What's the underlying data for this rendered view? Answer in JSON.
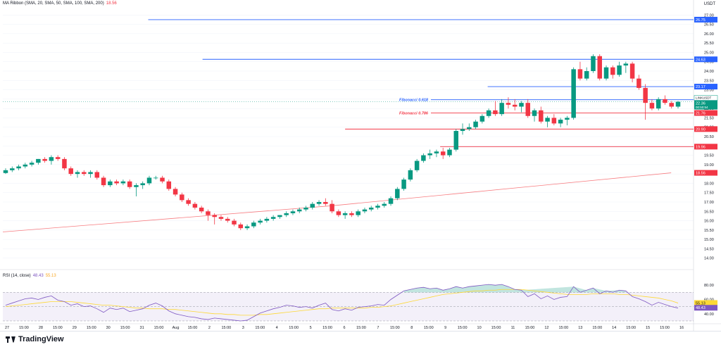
{
  "header": {
    "ma_title": "MA Ribbon (SMA, 20, SMA, 50, SMA, 100, SMA, 200)",
    "ma_value": "18.56",
    "currency": "USDT"
  },
  "rsi_panel": {
    "title": "RSI (14, close)",
    "rsi_value": "48.43",
    "rsi_ma_value": "55.13"
  },
  "footer": {
    "brand": "TradingView"
  },
  "colors": {
    "up": "#089981",
    "down": "#f23645",
    "blue": "#2962ff",
    "red": "#f23645",
    "ma": "#f77c80",
    "rsi": "#7e57c2",
    "rsi_ma": "#fdd835",
    "grid": "#f0f3fa"
  },
  "chart_data": {
    "type": "candlestick",
    "ylim": [
      13.5,
      27.5
    ],
    "y_ticks": [
      "27.00",
      "26.50",
      "26.00",
      "25.50",
      "25.00",
      "24.50",
      "24.00",
      "23.50",
      "23.00",
      "22.50",
      "22.00",
      "21.50",
      "21.00",
      "20.50",
      "20.00",
      "19.50",
      "19.00",
      "18.50",
      "18.00",
      "17.50",
      "17.00",
      "16.50",
      "16.00",
      "15.50",
      "15.00",
      "14.50",
      "14.00"
    ],
    "x_labels": [
      "27",
      "15:00",
      "28",
      "15:00",
      "29",
      "15:00",
      "30",
      "15:00",
      "31",
      "15:00",
      "Aug",
      "15:00",
      "2",
      "15:00",
      "3",
      "15:00",
      "4",
      "15:00",
      "5",
      "15:00",
      "6",
      "15:00",
      "7",
      "15:00",
      "8",
      "15:00",
      "9",
      "15:00",
      "10",
      "15:00",
      "11",
      "15:00",
      "12",
      "15:00",
      "13",
      "15:00",
      "14",
      "15:00",
      "15",
      "15:00",
      "16"
    ],
    "candles": [
      [
        18.55,
        18.8,
        18.5,
        18.7
      ],
      [
        18.7,
        18.9,
        18.6,
        18.8
      ],
      [
        18.8,
        19.0,
        18.7,
        18.9
      ],
      [
        18.9,
        19.1,
        18.8,
        19.0
      ],
      [
        19.0,
        19.2,
        18.9,
        19.1
      ],
      [
        19.1,
        19.3,
        19.0,
        19.3
      ],
      [
        19.3,
        19.4,
        19.1,
        19.2
      ],
      [
        19.2,
        19.5,
        19.0,
        19.4
      ],
      [
        19.4,
        19.5,
        19.2,
        19.3
      ],
      [
        19.3,
        19.4,
        18.7,
        18.8
      ],
      [
        18.8,
        18.9,
        18.4,
        18.5
      ],
      [
        18.5,
        18.7,
        18.3,
        18.6
      ],
      [
        18.6,
        18.7,
        18.4,
        18.5
      ],
      [
        18.5,
        18.7,
        18.3,
        18.6
      ],
      [
        18.6,
        18.7,
        18.2,
        18.3
      ],
      [
        18.3,
        18.4,
        17.8,
        17.9
      ],
      [
        17.9,
        18.2,
        17.8,
        18.1
      ],
      [
        18.1,
        18.2,
        17.9,
        18.0
      ],
      [
        18.0,
        18.2,
        17.9,
        18.1
      ],
      [
        18.1,
        18.2,
        17.7,
        17.8
      ],
      [
        17.8,
        18.0,
        17.3,
        17.9
      ],
      [
        17.9,
        18.1,
        17.7,
        18.0
      ],
      [
        18.0,
        18.4,
        17.9,
        18.3
      ],
      [
        18.3,
        18.4,
        18.2,
        18.3
      ],
      [
        18.3,
        18.4,
        18.0,
        18.1
      ],
      [
        18.1,
        18.2,
        17.6,
        17.7
      ],
      [
        17.7,
        17.8,
        17.3,
        17.4
      ],
      [
        17.4,
        17.5,
        17.0,
        17.1
      ],
      [
        17.1,
        17.2,
        16.8,
        16.9
      ],
      [
        16.9,
        17.0,
        16.6,
        16.7
      ],
      [
        16.7,
        16.8,
        16.4,
        16.5
      ],
      [
        16.5,
        16.6,
        16.0,
        16.3
      ],
      [
        16.3,
        16.4,
        15.8,
        16.2
      ],
      [
        16.2,
        16.3,
        16.0,
        16.1
      ],
      [
        16.1,
        16.2,
        15.9,
        16.0
      ],
      [
        16.0,
        16.1,
        15.7,
        15.8
      ],
      [
        15.8,
        15.9,
        15.5,
        15.6
      ],
      [
        15.6,
        15.8,
        15.5,
        15.7
      ],
      [
        15.7,
        16.0,
        15.6,
        15.9
      ],
      [
        15.9,
        16.1,
        15.8,
        16.0
      ],
      [
        16.0,
        16.2,
        15.9,
        16.1
      ],
      [
        16.1,
        16.3,
        16.0,
        16.2
      ],
      [
        16.2,
        16.3,
        16.1,
        16.3
      ],
      [
        16.3,
        16.5,
        16.2,
        16.4
      ],
      [
        16.4,
        16.6,
        16.3,
        16.5
      ],
      [
        16.5,
        16.7,
        16.4,
        16.6
      ],
      [
        16.6,
        16.8,
        16.5,
        16.7
      ],
      [
        16.7,
        17.0,
        16.6,
        16.9
      ],
      [
        16.9,
        17.1,
        16.8,
        17.0
      ],
      [
        17.0,
        17.2,
        16.8,
        16.9
      ],
      [
        16.9,
        17.1,
        16.4,
        16.5
      ],
      [
        16.5,
        16.6,
        16.2,
        16.3
      ],
      [
        16.3,
        16.5,
        16.1,
        16.4
      ],
      [
        16.4,
        16.5,
        16.2,
        16.3
      ],
      [
        16.3,
        16.6,
        16.2,
        16.5
      ],
      [
        16.5,
        16.7,
        16.4,
        16.6
      ],
      [
        16.6,
        16.8,
        16.5,
        16.7
      ],
      [
        16.7,
        16.9,
        16.6,
        16.8
      ],
      [
        16.8,
        17.0,
        16.7,
        16.9
      ],
      [
        16.9,
        17.3,
        16.8,
        17.2
      ],
      [
        17.2,
        17.8,
        17.1,
        17.7
      ],
      [
        17.7,
        18.3,
        17.6,
        18.2
      ],
      [
        18.2,
        18.8,
        18.1,
        18.7
      ],
      [
        18.7,
        19.3,
        18.6,
        19.2
      ],
      [
        19.2,
        19.6,
        19.1,
        19.5
      ],
      [
        19.5,
        19.8,
        19.3,
        19.6
      ],
      [
        19.6,
        19.8,
        19.4,
        19.7
      ],
      [
        19.7,
        19.9,
        19.3,
        19.5
      ],
      [
        19.5,
        19.9,
        19.4,
        19.8
      ],
      [
        19.8,
        20.9,
        19.7,
        20.8
      ],
      [
        20.8,
        21.2,
        20.6,
        20.9
      ],
      [
        20.9,
        21.2,
        20.8,
        21.0
      ],
      [
        21.0,
        21.4,
        20.9,
        21.3
      ],
      [
        21.3,
        21.7,
        21.2,
        21.6
      ],
      [
        21.6,
        22.0,
        21.5,
        21.9
      ],
      [
        21.9,
        22.4,
        21.6,
        21.7
      ],
      [
        21.7,
        22.5,
        21.6,
        22.3
      ],
      [
        22.3,
        22.6,
        22.0,
        22.2
      ],
      [
        22.2,
        22.5,
        21.9,
        22.1
      ],
      [
        22.1,
        22.4,
        21.8,
        22.3
      ],
      [
        22.3,
        22.5,
        21.5,
        21.6
      ],
      [
        21.6,
        22.0,
        21.3,
        21.9
      ],
      [
        21.9,
        22.1,
        21.2,
        21.3
      ],
      [
        21.3,
        21.6,
        21.0,
        21.5
      ],
      [
        21.5,
        21.7,
        21.1,
        21.2
      ],
      [
        21.2,
        21.5,
        21.0,
        21.4
      ],
      [
        21.4,
        21.6,
        21.1,
        21.5
      ],
      [
        21.5,
        24.2,
        21.4,
        24.1
      ],
      [
        24.1,
        24.5,
        23.5,
        23.6
      ],
      [
        23.6,
        24.2,
        23.5,
        24.0
      ],
      [
        24.0,
        24.9,
        23.9,
        24.8
      ],
      [
        24.8,
        24.9,
        23.5,
        23.6
      ],
      [
        23.6,
        24.3,
        23.5,
        24.2
      ],
      [
        24.2,
        24.3,
        23.6,
        23.8
      ],
      [
        23.8,
        24.5,
        23.7,
        24.3
      ],
      [
        24.3,
        24.5,
        23.9,
        24.4
      ],
      [
        24.4,
        24.5,
        23.4,
        23.6
      ],
      [
        23.6,
        23.8,
        23.0,
        23.1
      ],
      [
        23.1,
        23.3,
        21.4,
        22.3
      ],
      [
        22.3,
        22.5,
        21.9,
        22.0
      ],
      [
        22.0,
        22.6,
        21.9,
        22.5
      ],
      [
        22.5,
        22.7,
        22.2,
        22.3
      ],
      [
        22.3,
        22.4,
        22.0,
        22.1
      ],
      [
        22.1,
        22.4,
        22.0,
        22.36
      ]
    ],
    "ma200": [
      [
        0,
        15.4
      ],
      [
        50,
        16.8
      ],
      [
        100,
        18.8
      ]
    ],
    "levels": [
      {
        "value": 26.75,
        "label": "26.75",
        "color": "blue",
        "x_from": 21
      },
      {
        "value": 24.63,
        "label": "24.63",
        "color": "blue",
        "x_from": 29
      },
      {
        "value": 23.17,
        "label": "23.17",
        "color": "blue",
        "x_from": 71
      },
      {
        "value": 22.47,
        "label": "22.47",
        "color": "blue",
        "x_from": 0,
        "name": "Fibonacci 0.618"
      },
      {
        "value": 21.76,
        "label": "21.76",
        "color": "red",
        "x_from": 0,
        "name": "Fibonacci 0.786"
      },
      {
        "value": 20.9,
        "label": "20.90",
        "color": "red",
        "x_from": 50
      },
      {
        "value": 19.96,
        "label": "19.96",
        "color": "red",
        "x_from": 64
      }
    ],
    "current_price": {
      "value": 22.36,
      "label": "22.36",
      "symbol": "LINKUSDT",
      "countdown": "00:50:54"
    },
    "ma_value_label": {
      "value": 18.56,
      "label": "18.56"
    },
    "rsi": {
      "ylim": [
        28,
        90
      ],
      "y_ticks": [
        "80.00",
        "60.00",
        "40.00"
      ],
      "overbought": 70,
      "oversold": 30,
      "mid": 50,
      "rsi_label": "48.43",
      "rsi_ma_label": "55.13",
      "values": [
        52,
        55,
        58,
        61,
        62,
        60,
        63,
        65,
        59,
        57,
        52,
        54,
        50,
        51,
        47,
        42,
        48,
        46,
        48,
        43,
        45,
        47,
        52,
        55,
        51,
        44,
        40,
        38,
        36,
        35,
        33,
        32,
        34,
        33,
        32,
        31,
        30,
        31,
        36,
        41,
        44,
        47,
        49,
        52,
        51,
        49,
        50,
        48,
        52,
        55,
        46,
        44,
        47,
        45,
        49,
        50,
        51,
        53,
        52,
        60,
        66,
        72,
        74,
        76,
        77,
        75,
        76,
        73,
        75,
        78,
        76,
        78,
        79,
        80,
        81,
        80,
        81,
        78,
        74,
        73,
        64,
        68,
        61,
        65,
        60,
        63,
        64,
        78,
        70,
        73,
        76,
        68,
        72,
        70,
        73,
        72,
        64,
        61,
        57,
        52,
        56,
        53,
        50,
        48
      ],
      "ma_values": [
        50,
        51,
        52,
        53,
        54,
        55,
        56,
        57,
        57,
        57,
        57,
        56,
        55,
        54,
        53,
        52,
        52,
        51,
        50,
        49,
        48,
        48,
        47,
        47,
        47,
        46,
        46,
        45,
        44,
        43,
        42,
        41,
        40,
        40,
        39,
        39,
        38,
        38,
        38,
        39,
        39,
        40,
        41,
        42,
        43,
        44,
        45,
        46,
        47,
        47,
        48,
        48,
        48,
        48,
        48,
        48,
        49,
        49,
        50,
        51,
        53,
        55,
        57,
        59,
        61,
        63,
        65,
        67,
        68,
        69,
        70,
        71,
        72,
        72,
        73,
        73,
        74,
        74,
        74,
        74,
        73,
        72,
        71,
        70,
        69,
        68,
        67,
        67,
        67,
        67,
        68,
        68,
        68,
        68,
        67,
        67,
        66,
        65,
        64,
        63,
        62,
        60,
        58,
        55
      ]
    }
  }
}
